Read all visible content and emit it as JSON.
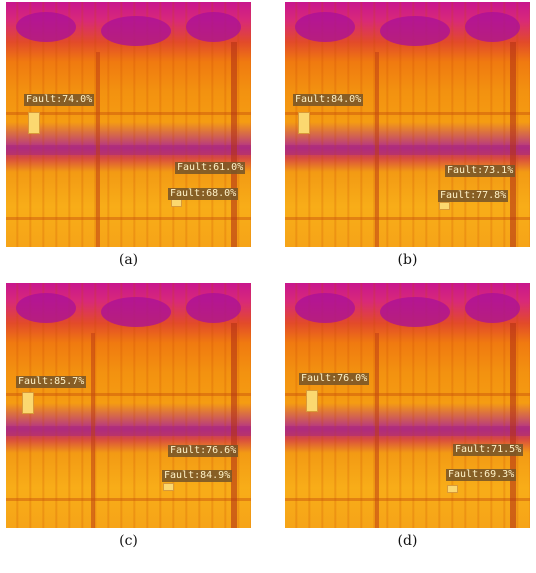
{
  "panels": [
    {
      "caption": "(a)",
      "labels": [
        "Fault:74.0%",
        "Fault:61.0%",
        "Fault:68.0%"
      ]
    },
    {
      "caption": "(b)",
      "labels": [
        "Fault:84.0%",
        "Fault:73.1%",
        "Fault:77.8%"
      ]
    },
    {
      "caption": "(c)",
      "labels": [
        "Fault:85.7%",
        "Fault:76.6%",
        "Fault:84.9%"
      ]
    },
    {
      "caption": "(d)",
      "labels": [
        "Fault:76.0%",
        "Fault:71.5%",
        "Fault:69.3%"
      ]
    }
  ]
}
